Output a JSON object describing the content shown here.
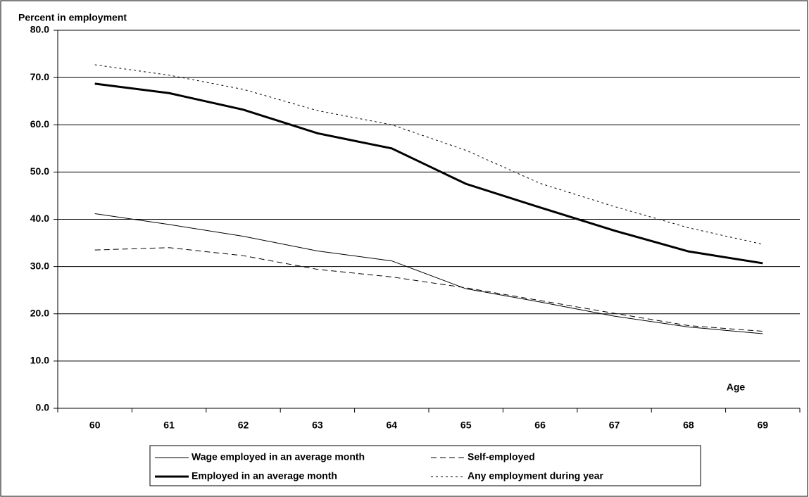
{
  "chart_data": {
    "type": "line",
    "y_label": "Percent in employment",
    "annotation": "Age",
    "categories": [
      "60",
      "61",
      "62",
      "63",
      "64",
      "65",
      "66",
      "67",
      "68",
      "69"
    ],
    "ylim": [
      0,
      80
    ],
    "yticks": [
      {
        "value": 0,
        "label": "0.0"
      },
      {
        "value": 10,
        "label": "10.0"
      },
      {
        "value": 20,
        "label": "20.0"
      },
      {
        "value": 30,
        "label": "30.0"
      },
      {
        "value": 40,
        "label": "40.0"
      },
      {
        "value": 50,
        "label": "50.0"
      },
      {
        "value": 60,
        "label": "60.0"
      },
      {
        "value": 70,
        "label": "70.0"
      },
      {
        "value": 80,
        "label": "80.0"
      }
    ],
    "grid": true,
    "series": [
      {
        "name": "Wage employed in an average month",
        "color": "#000000",
        "line_style": "solid",
        "line_width": 1,
        "values": [
          41.2,
          38.9,
          36.4,
          33.3,
          31.2,
          25.3,
          22.5,
          19.5,
          17.2,
          15.8
        ]
      },
      {
        "name": "Self-employed",
        "color": "#000000",
        "line_style": "dashed",
        "line_width": 1,
        "values": [
          33.5,
          34.0,
          32.3,
          29.4,
          27.8,
          25.5,
          22.8,
          20.1,
          17.5,
          16.3
        ]
      },
      {
        "name": "Employed in an average month",
        "color": "#000000",
        "line_style": "solid",
        "line_width": 3,
        "values": [
          68.7,
          66.7,
          63.2,
          58.2,
          55.0,
          47.5,
          42.5,
          37.6,
          33.2,
          30.7
        ]
      },
      {
        "name": "Any employment during year",
        "color": "#000000",
        "line_style": "dotted",
        "line_width": 1,
        "values": [
          72.7,
          70.5,
          67.5,
          63.0,
          60.0,
          54.6,
          47.6,
          42.7,
          38.2,
          34.7
        ]
      }
    ]
  }
}
